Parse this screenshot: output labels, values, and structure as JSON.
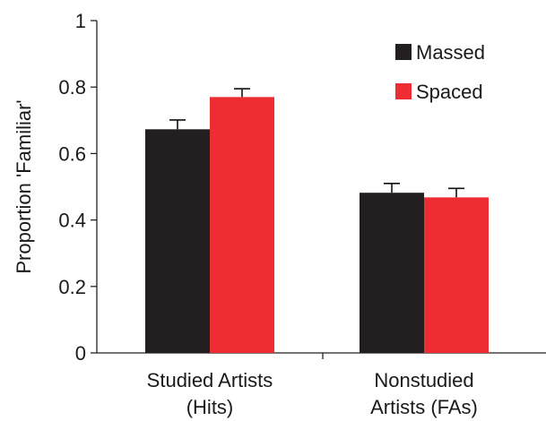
{
  "chart_data": {
    "type": "bar",
    "categories": [
      [
        "Studied Artists",
        "(Hits)"
      ],
      [
        "Nonstudied",
        "Artists (FAs)"
      ]
    ],
    "series": [
      {
        "name": "Massed",
        "color": "#231f20",
        "values": [
          0.673,
          0.482
        ],
        "errors": [
          0.028,
          0.028
        ]
      },
      {
        "name": "Spaced",
        "color": "#ee2d33",
        "values": [
          0.77,
          0.468
        ],
        "errors": [
          0.025,
          0.027
        ]
      }
    ],
    "ylabel": "Proportion 'Familiar'",
    "xlabel": "",
    "title": "",
    "ylim": [
      0,
      1
    ],
    "yticks": [
      "0",
      "0.2",
      "0.4",
      "0.6",
      "0.8",
      "1"
    ],
    "yticks_values": [
      0,
      0.2,
      0.4,
      0.6,
      0.8,
      1
    ],
    "legend_position": "top-right",
    "grid": false
  }
}
